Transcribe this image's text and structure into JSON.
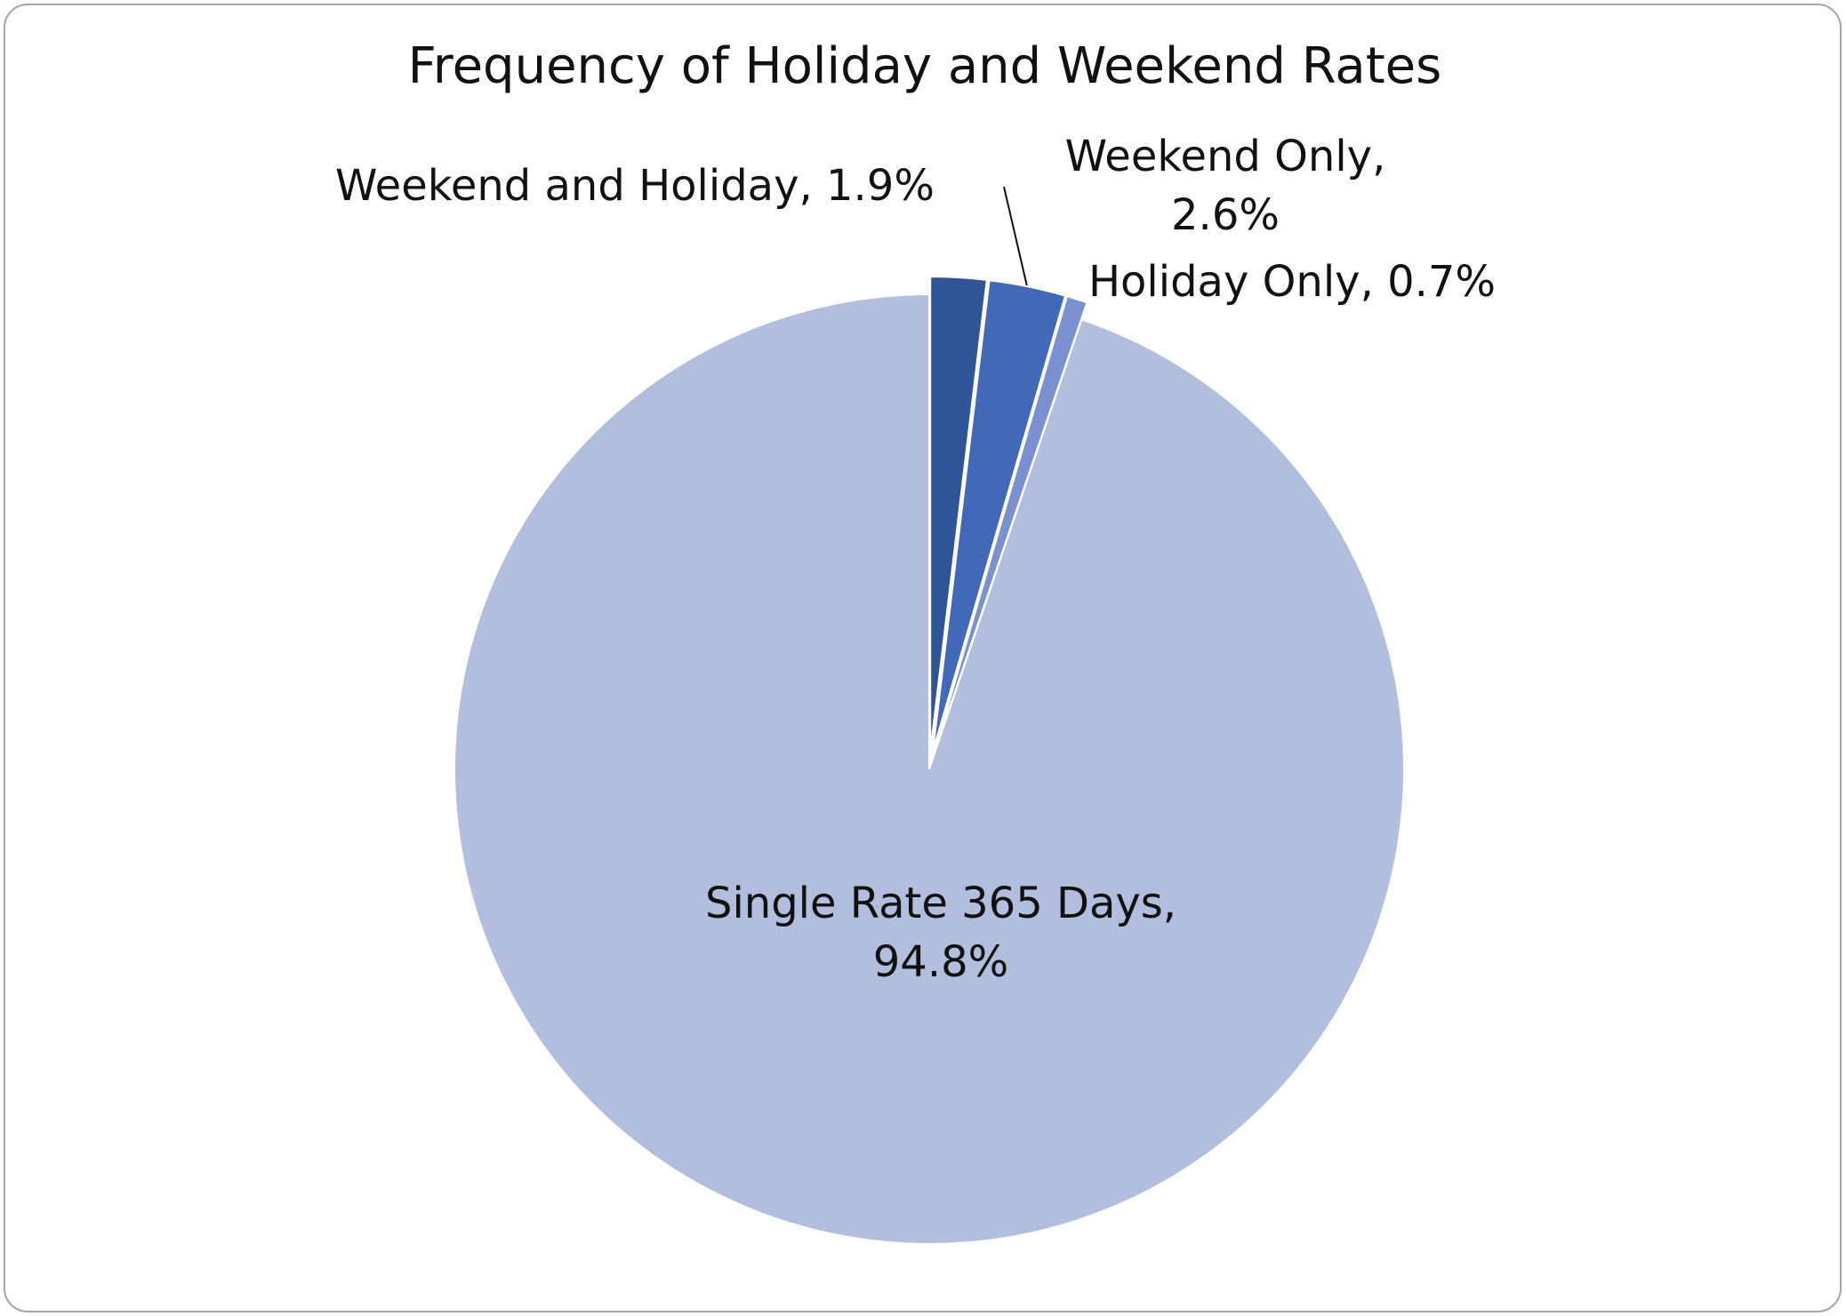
{
  "chart_data": {
    "type": "pie",
    "title": "Frequency of Holiday and Weekend Rates",
    "labels": [
      "Weekend and Holiday, 1.9%",
      "Weekend Only, 2.6%",
      "Holiday Only, 0.7%",
      "Single Rate 365 Days, 94.8%"
    ],
    "values": [
      1.9,
      2.6,
      0.7,
      94.8
    ],
    "colors": [
      "#2f5597",
      "#4169b8",
      "#7b90d0",
      "#b2bede"
    ]
  }
}
